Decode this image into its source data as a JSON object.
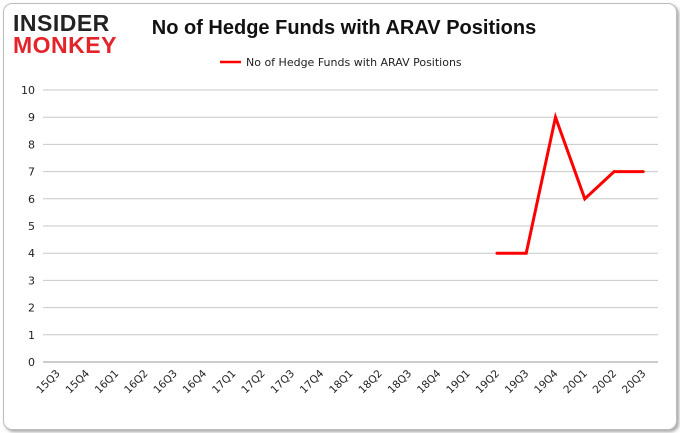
{
  "logo": {
    "line1": "INSIDER",
    "line2": "MONKEY"
  },
  "chart_data": {
    "type": "line",
    "title": "No of Hedge Funds with ARAV Positions",
    "xlabel": "",
    "ylabel": "",
    "categories": [
      "15Q3",
      "15Q4",
      "16Q1",
      "16Q2",
      "16Q3",
      "16Q4",
      "17Q1",
      "17Q2",
      "17Q3",
      "17Q4",
      "18Q1",
      "18Q2",
      "18Q3",
      "18Q4",
      "19Q1",
      "19Q2",
      "19Q3",
      "19Q4",
      "20Q1",
      "20Q2",
      "20Q3"
    ],
    "series": [
      {
        "name": "No of Hedge Funds with ARAV Positions",
        "values": [
          null,
          null,
          null,
          null,
          null,
          null,
          null,
          null,
          null,
          null,
          null,
          null,
          null,
          null,
          null,
          4,
          4,
          9,
          6,
          7,
          7
        ],
        "color": "#ff0000"
      }
    ],
    "ylim": [
      0,
      10
    ],
    "yticks": [
      0,
      1,
      2,
      3,
      4,
      5,
      6,
      7,
      8,
      9,
      10
    ],
    "grid": true,
    "legend_position": "top-center"
  }
}
